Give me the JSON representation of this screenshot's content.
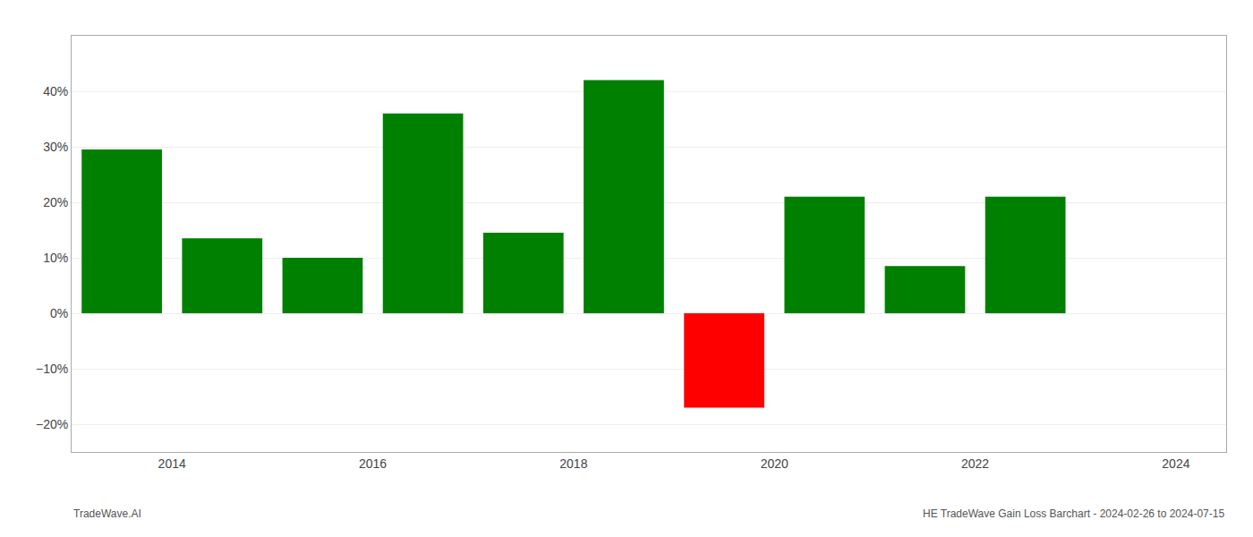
{
  "chart_data": {
    "type": "bar",
    "x": [
      2013.5,
      2014.5,
      2015.5,
      2016.5,
      2017.5,
      2018.5,
      2019.5,
      2020.5,
      2021.5,
      2022.5
    ],
    "values": [
      29.5,
      13.5,
      10.0,
      36.0,
      14.5,
      42.0,
      -17.0,
      21.0,
      8.5,
      21.0
    ],
    "colors": [
      "#008000",
      "#008000",
      "#008000",
      "#008000",
      "#008000",
      "#008000",
      "#ff0000",
      "#008000",
      "#008000",
      "#008000"
    ],
    "ylim": [
      -25,
      50
    ],
    "yticks": [
      {
        "value": -20,
        "label": "−20%"
      },
      {
        "value": -10,
        "label": "−10%"
      },
      {
        "value": 0,
        "label": "0%"
      },
      {
        "value": 10,
        "label": "10%"
      },
      {
        "value": 20,
        "label": "20%"
      },
      {
        "value": 30,
        "label": "30%"
      },
      {
        "value": 40,
        "label": "40%"
      }
    ],
    "xlim": [
      2013.0,
      2024.5
    ],
    "xticks": [
      2014,
      2016,
      2018,
      2020,
      2022,
      2024
    ],
    "grid": true,
    "annotations": [
      "TradeWave.AI",
      "HE TradeWave Gain Loss Barchart - 2024-02-26 to 2024-07-15"
    ]
  }
}
